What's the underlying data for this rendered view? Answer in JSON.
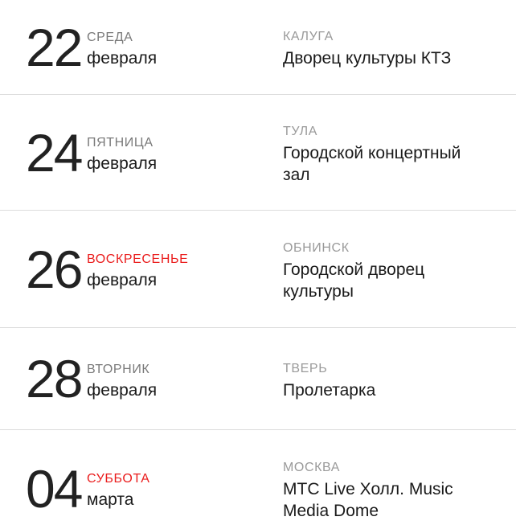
{
  "schedule": {
    "colors": {
      "accent_red": "#ea1c1c",
      "weekday_gray": "#7a7a7a",
      "city_gray": "#9a9a9a",
      "divider": "#dcdcdc",
      "text_primary": "#1a1a1a",
      "day_number": "#222222"
    },
    "events": [
      {
        "day": "22",
        "weekday": "СРЕДА",
        "weekday_color": "#7a7a7a",
        "month": "февраля",
        "city": "КАЛУГА",
        "venue": "Дворец культуры КТЗ"
      },
      {
        "day": "24",
        "weekday": "ПЯТНИЦА",
        "weekday_color": "#7a7a7a",
        "month": "февраля",
        "city": "ТУЛА",
        "venue": "Городской концертный зал"
      },
      {
        "day": "26",
        "weekday": "ВОСКРЕСЕНЬЕ",
        "weekday_color": "#ea1c1c",
        "month": "февраля",
        "city": "ОБНИНСК",
        "venue": "Городской дворец культуры"
      },
      {
        "day": "28",
        "weekday": "ВТОРНИК",
        "weekday_color": "#7a7a7a",
        "month": "февраля",
        "city": "ТВЕРЬ",
        "venue": "Пролетарка"
      },
      {
        "day": "04",
        "weekday": "СУББОТА",
        "weekday_color": "#ea1c1c",
        "month": "марта",
        "city": "МОСКВА",
        "venue": "МТС Live Холл. Music Media Dome"
      }
    ]
  }
}
